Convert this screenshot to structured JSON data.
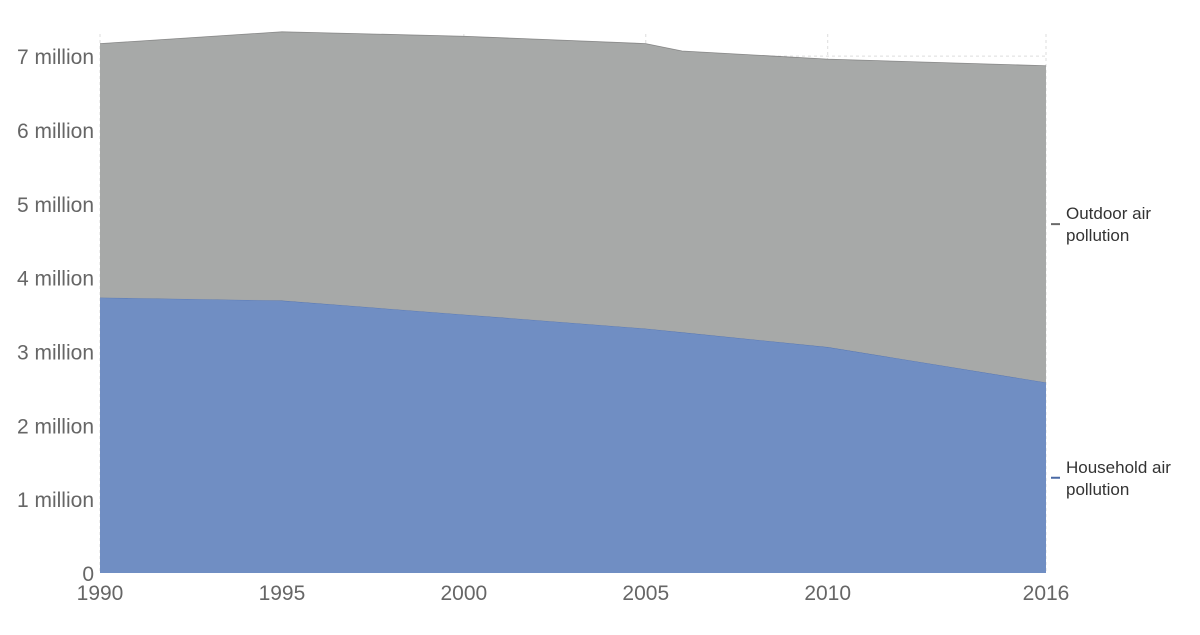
{
  "chart_data": {
    "type": "area",
    "stacked": true,
    "x": [
      1990,
      1995,
      2000,
      2005,
      2006,
      2010,
      2016
    ],
    "x_ticks": [
      "1990",
      "1995",
      "2000",
      "2005",
      "2010",
      "2016"
    ],
    "y_ticks": [
      "0",
      "1 million",
      "2 million",
      "3 million",
      "4 million",
      "5 million",
      "6 million",
      "7 million"
    ],
    "y_tick_values": [
      0,
      1000000,
      2000000,
      3000000,
      4000000,
      5000000,
      6000000,
      7000000
    ],
    "xlim": [
      1990,
      2016
    ],
    "ylim": [
      0,
      7300000
    ],
    "grid": true,
    "legend_placement": "right",
    "series": [
      {
        "name_lines": [
          "Household air",
          "pollution"
        ],
        "color": "#6d8cc2",
        "line_color": "#4a6aa5",
        "values": [
          3730000,
          3690000,
          3500000,
          3310000,
          3260000,
          3060000,
          2580000
        ]
      },
      {
        "name_lines": [
          "Outdoor air",
          "pollution"
        ],
        "color": "#a5a7a6",
        "line_color": "#6a6a6a",
        "values": [
          3440000,
          3640000,
          3770000,
          3860000,
          3810000,
          3900000,
          4290000
        ]
      }
    ]
  }
}
